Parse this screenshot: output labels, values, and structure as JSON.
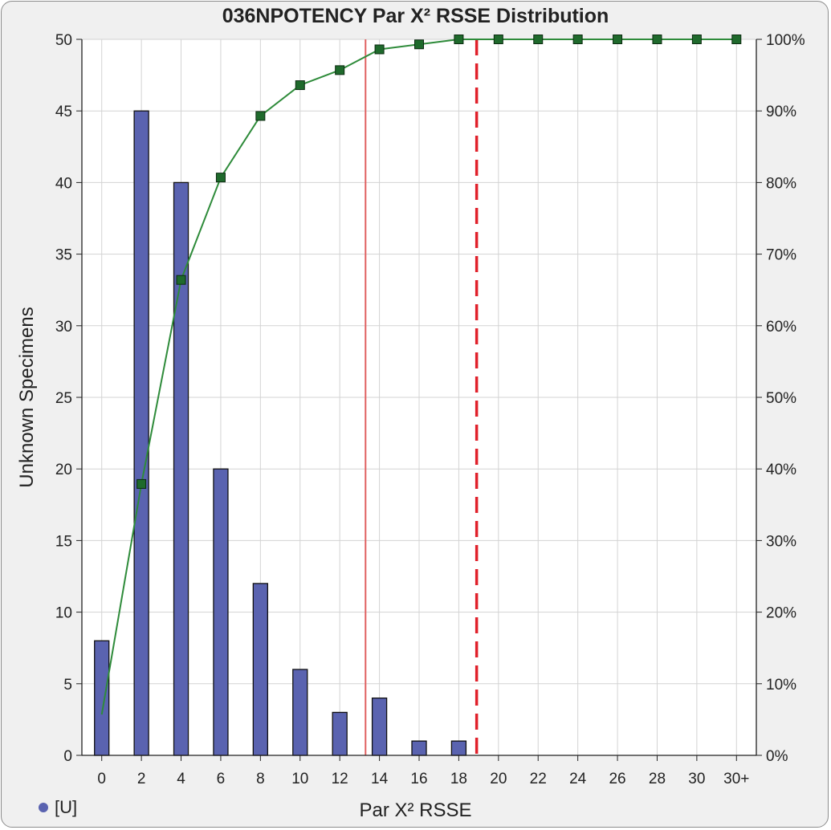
{
  "chart_data": {
    "type": "bar",
    "title": "036NPOTENCY Par X² RSSE Distribution",
    "xlabel": "Par X² RSSE",
    "ylabel": "Unknown Specimens",
    "categories": [
      "0",
      "2",
      "4",
      "6",
      "8",
      "10",
      "12",
      "14",
      "16",
      "18",
      "20",
      "22",
      "24",
      "26",
      "28",
      "30",
      "30+"
    ],
    "series": [
      {
        "kind": "bar",
        "values": [
          8,
          45,
          40,
          20,
          12,
          6,
          3,
          4,
          1,
          1,
          0,
          0,
          0,
          0,
          0,
          0,
          0
        ],
        "color": "#5a63b0"
      },
      {
        "kind": "cumulative-line",
        "axis": "right",
        "values": [
          5.7,
          37.9,
          66.4,
          80.7,
          89.3,
          93.6,
          95.7,
          98.6,
          99.3,
          100,
          100,
          100,
          100,
          100,
          100,
          100,
          100
        ],
        "color": "#2e8b3a"
      }
    ],
    "ylim": [
      0,
      50
    ],
    "yticks": [
      0,
      5,
      10,
      15,
      20,
      25,
      30,
      35,
      40,
      45,
      50
    ],
    "y2lim": [
      0,
      100
    ],
    "y2ticks": [
      "0%",
      "10%",
      "20%",
      "30%",
      "40%",
      "50%",
      "60%",
      "70%",
      "80%",
      "90%",
      "100%"
    ],
    "reference_lines": [
      {
        "x": 13.3,
        "style": "solid",
        "color": "#e06060"
      },
      {
        "x": 18.9,
        "style": "dashed",
        "color": "#e0202a"
      }
    ],
    "grid": true,
    "legend": {
      "position": "bottom-left",
      "label": "[U]"
    }
  }
}
